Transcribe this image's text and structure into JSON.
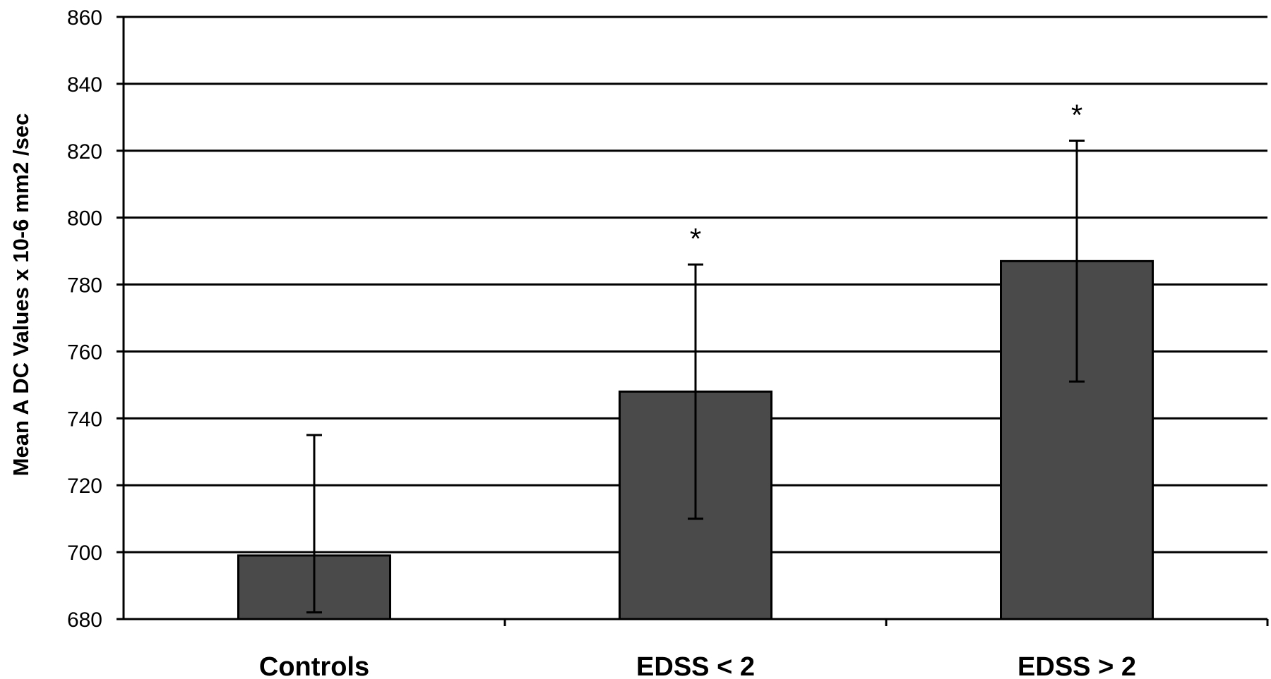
{
  "chart_data": {
    "type": "bar",
    "title": "",
    "xlabel": "",
    "ylabel": "Mean A DC Values x 10-6 mm2 /sec",
    "categories": [
      "Controls",
      "EDSS < 2",
      "EDSS > 2"
    ],
    "series": [
      {
        "values": [
          699,
          748,
          787
        ],
        "error_upper": [
          735,
          786,
          823
        ],
        "error_lower": [
          682,
          710,
          751
        ],
        "significance_marks": [
          "",
          "*",
          "*"
        ]
      }
    ],
    "ylim": [
      680,
      860
    ],
    "yticks": [
      680,
      700,
      720,
      740,
      760,
      780,
      800,
      820,
      840,
      860
    ],
    "grid": true,
    "legend": "none",
    "bar_color": "#4a4a4a"
  }
}
